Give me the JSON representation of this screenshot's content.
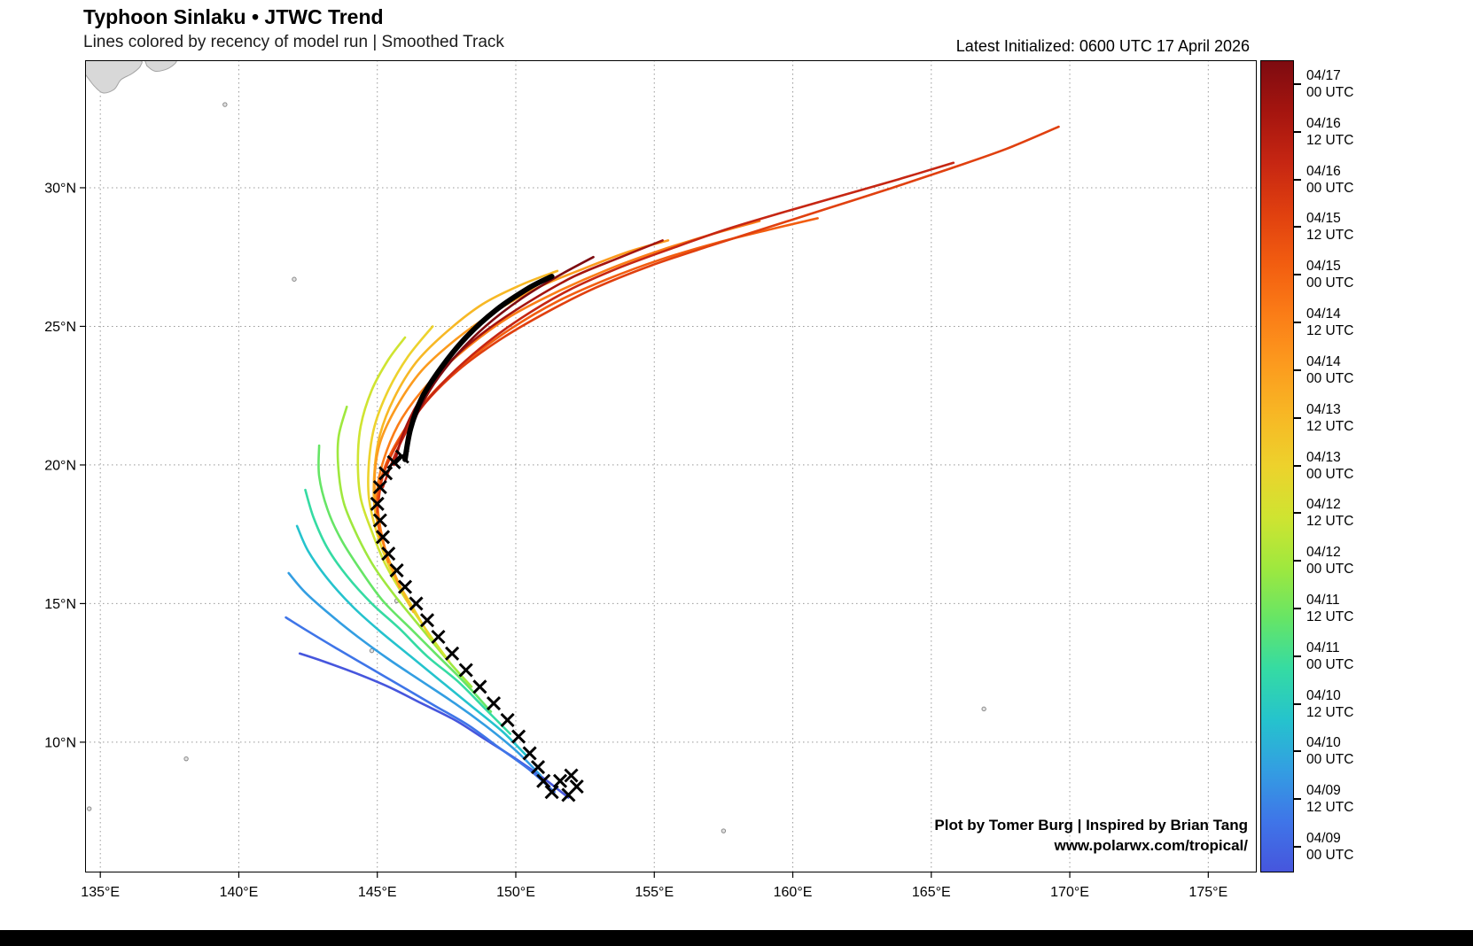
{
  "header": {
    "title": "Typhoon Sinlaku • JTWC Trend",
    "subtitle": "Lines colored by recency of model run | Smoothed Track",
    "latest_initialized": "Latest Initialized: 0600 UTC 17 April 2026"
  },
  "attribution": {
    "line1": "Plot by Tomer Burg | Inspired by Brian Tang",
    "line2": "www.polarwx.com/tropical/"
  },
  "chart_data": {
    "type": "line",
    "title": "Typhoon Sinlaku • JTWC Trend",
    "subtitle": "Lines colored by recency of model run | Smoothed Track",
    "grid": "dotted",
    "legend_position": "right-colorbar",
    "projection": {
      "lon_min": 134.45,
      "lon_max": 176.75,
      "lat_min": 5.3,
      "lat_max": 34.6
    },
    "x_ticks": {
      "values": [
        135,
        140,
        145,
        150,
        155,
        160,
        165,
        170,
        175
      ],
      "labels": [
        "135°E",
        "140°E",
        "145°E",
        "150°E",
        "155°E",
        "160°E",
        "165°E",
        "170°E",
        "175°E"
      ]
    },
    "y_ticks": {
      "values": [
        10,
        15,
        20,
        25,
        30
      ],
      "labels": [
        "10°N",
        "15°N",
        "20°N",
        "25°N",
        "30°N"
      ]
    },
    "colorbar": [
      {
        "date": "04/17",
        "time": "00 UTC",
        "color": "#7e0b10"
      },
      {
        "date": "04/16",
        "time": "12 UTC",
        "color": "#a5150f"
      },
      {
        "date": "04/16",
        "time": "00 UTC",
        "color": "#c62612"
      },
      {
        "date": "04/15",
        "time": "12 UTC",
        "color": "#e0400f"
      },
      {
        "date": "04/15",
        "time": "00 UTC",
        "color": "#f25d10"
      },
      {
        "date": "04/14",
        "time": "12 UTC",
        "color": "#fb7d17"
      },
      {
        "date": "04/14",
        "time": "00 UTC",
        "color": "#fc9b1e"
      },
      {
        "date": "04/13",
        "time": "12 UTC",
        "color": "#f7b825"
      },
      {
        "date": "04/13",
        "time": "00 UTC",
        "color": "#edd22c"
      },
      {
        "date": "04/12",
        "time": "12 UTC",
        "color": "#cfe431"
      },
      {
        "date": "04/12",
        "time": "00 UTC",
        "color": "#9fe83e"
      },
      {
        "date": "04/11",
        "time": "12 UTC",
        "color": "#66e566"
      },
      {
        "date": "04/11",
        "time": "00 UTC",
        "color": "#35dba3"
      },
      {
        "date": "04/10",
        "time": "12 UTC",
        "color": "#25c3cd"
      },
      {
        "date": "04/10",
        "time": "00 UTC",
        "color": "#339ee2"
      },
      {
        "date": "04/09",
        "time": "12 UTC",
        "color": "#3f75e8"
      },
      {
        "date": "04/09",
        "time": "00 UTC",
        "color": "#4656dd"
      }
    ],
    "runs": [
      {
        "label": "04/09 00 UTC",
        "color": "#4656dd",
        "points": [
          [
            151.9,
            8.0
          ],
          [
            151.0,
            8.7
          ],
          [
            150.0,
            9.4
          ],
          [
            148.9,
            10.1
          ],
          [
            147.8,
            10.8
          ],
          [
            146.6,
            11.4
          ],
          [
            145.4,
            12.0
          ],
          [
            144.2,
            12.5
          ],
          [
            143.1,
            12.9
          ],
          [
            142.2,
            13.2
          ]
        ]
      },
      {
        "label": "04/09 12 UTC",
        "color": "#3f75e8",
        "points": [
          [
            151.4,
            8.2
          ],
          [
            150.5,
            9.0
          ],
          [
            149.4,
            9.8
          ],
          [
            148.3,
            10.6
          ],
          [
            147.1,
            11.3
          ],
          [
            145.9,
            12.0
          ],
          [
            144.7,
            12.7
          ],
          [
            143.5,
            13.4
          ],
          [
            142.5,
            14.0
          ],
          [
            141.7,
            14.5
          ]
        ]
      },
      {
        "label": "04/10 00 UTC",
        "color": "#339ee2",
        "points": [
          [
            150.9,
            8.8
          ],
          [
            150.0,
            9.7
          ],
          [
            148.9,
            10.6
          ],
          [
            147.8,
            11.4
          ],
          [
            146.6,
            12.2
          ],
          [
            145.4,
            13.0
          ],
          [
            144.3,
            13.8
          ],
          [
            143.3,
            14.6
          ],
          [
            142.4,
            15.4
          ],
          [
            141.8,
            16.1
          ]
        ]
      },
      {
        "label": "04/10 12 UTC",
        "color": "#25c3cd",
        "points": [
          [
            150.4,
            9.5
          ],
          [
            149.5,
            10.4
          ],
          [
            148.4,
            11.3
          ],
          [
            147.3,
            12.2
          ],
          [
            146.2,
            13.1
          ],
          [
            145.1,
            14.0
          ],
          [
            144.1,
            14.9
          ],
          [
            143.2,
            15.9
          ],
          [
            142.5,
            16.9
          ],
          [
            142.1,
            17.8
          ]
        ]
      },
      {
        "label": "04/11 00 UTC",
        "color": "#35dba3",
        "points": [
          [
            149.8,
            10.3
          ],
          [
            148.9,
            11.2
          ],
          [
            147.9,
            12.2
          ],
          [
            146.8,
            13.1
          ],
          [
            145.8,
            14.1
          ],
          [
            144.8,
            15.0
          ],
          [
            143.9,
            16.0
          ],
          [
            143.2,
            17.0
          ],
          [
            142.7,
            18.1
          ],
          [
            142.4,
            19.1
          ]
        ]
      },
      {
        "label": "04/11 12 UTC",
        "color": "#66e566",
        "points": [
          [
            149.1,
            11.1
          ],
          [
            148.2,
            12.1
          ],
          [
            147.2,
            13.1
          ],
          [
            146.2,
            14.1
          ],
          [
            145.2,
            15.1
          ],
          [
            144.4,
            16.2
          ],
          [
            143.7,
            17.3
          ],
          [
            143.2,
            18.4
          ],
          [
            142.9,
            19.6
          ],
          [
            142.9,
            20.7
          ]
        ]
      },
      {
        "label": "04/12 00 UTC",
        "color": "#9fe83e",
        "points": [
          [
            148.4,
            12.0
          ],
          [
            147.5,
            13.0
          ],
          [
            146.6,
            14.1
          ],
          [
            145.7,
            15.2
          ],
          [
            144.9,
            16.3
          ],
          [
            144.3,
            17.4
          ],
          [
            143.8,
            18.6
          ],
          [
            143.6,
            19.8
          ],
          [
            143.6,
            21.0
          ],
          [
            143.9,
            22.1
          ]
        ]
      },
      {
        "label": "04/12 12 UTC",
        "color": "#cfe431",
        "points": [
          [
            147.6,
            12.9
          ],
          [
            146.8,
            14.0
          ],
          [
            146.0,
            15.2
          ],
          [
            145.3,
            16.4
          ],
          [
            144.8,
            17.6
          ],
          [
            144.4,
            18.8
          ],
          [
            144.3,
            20.1
          ],
          [
            144.4,
            21.4
          ],
          [
            144.8,
            22.7
          ],
          [
            145.4,
            23.8
          ],
          [
            146.0,
            24.6
          ]
        ]
      },
      {
        "label": "04/13 00 UTC",
        "color": "#edd22c",
        "points": [
          [
            146.9,
            13.8
          ],
          [
            146.2,
            15.0
          ],
          [
            145.5,
            16.2
          ],
          [
            145.0,
            17.5
          ],
          [
            144.7,
            18.8
          ],
          [
            144.7,
            20.1
          ],
          [
            144.9,
            21.4
          ],
          [
            145.4,
            22.7
          ],
          [
            146.1,
            23.9
          ],
          [
            147.0,
            25.0
          ]
        ]
      },
      {
        "label": "04/13 12 UTC",
        "color": "#f7b825",
        "points": [
          [
            146.3,
            14.7
          ],
          [
            145.7,
            15.9
          ],
          [
            145.2,
            17.2
          ],
          [
            144.9,
            18.5
          ],
          [
            144.9,
            19.8
          ],
          [
            145.1,
            21.1
          ],
          [
            145.6,
            22.4
          ],
          [
            146.4,
            23.7
          ],
          [
            147.5,
            24.8
          ],
          [
            148.8,
            25.8
          ],
          [
            150.2,
            26.5
          ],
          [
            151.5,
            27.0
          ]
        ]
      },
      {
        "label": "04/14 00 UTC",
        "color": "#fc9b1e",
        "points": [
          [
            145.8,
            15.6
          ],
          [
            145.3,
            16.9
          ],
          [
            145.0,
            18.2
          ],
          [
            144.9,
            19.5
          ],
          [
            145.1,
            20.8
          ],
          [
            145.7,
            22.1
          ],
          [
            146.6,
            23.4
          ],
          [
            147.8,
            24.5
          ],
          [
            149.2,
            25.5
          ],
          [
            150.8,
            26.4
          ],
          [
            152.5,
            27.1
          ],
          [
            154.1,
            27.7
          ],
          [
            155.5,
            28.1
          ]
        ]
      },
      {
        "label": "04/14 12 UTC",
        "color": "#fb7d17",
        "points": [
          [
            145.4,
            16.5
          ],
          [
            145.1,
            17.8
          ],
          [
            145.0,
            19.1
          ],
          [
            145.3,
            20.4
          ],
          [
            145.9,
            21.7
          ],
          [
            146.9,
            23.0
          ],
          [
            148.2,
            24.2
          ],
          [
            149.7,
            25.3
          ],
          [
            151.4,
            26.2
          ],
          [
            153.2,
            27.0
          ],
          [
            155.1,
            27.7
          ],
          [
            157.0,
            28.3
          ],
          [
            158.8,
            28.8
          ]
        ]
      },
      {
        "label": "04/15 00 UTC",
        "color": "#f25d10",
        "points": [
          [
            145.1,
            17.4
          ],
          [
            145.0,
            18.7
          ],
          [
            145.3,
            20.0
          ],
          [
            146.0,
            21.3
          ],
          [
            147.0,
            22.6
          ],
          [
            148.3,
            23.8
          ],
          [
            149.8,
            24.9
          ],
          [
            151.5,
            25.9
          ],
          [
            153.3,
            26.7
          ],
          [
            155.2,
            27.4
          ],
          [
            157.2,
            28.0
          ],
          [
            159.2,
            28.5
          ],
          [
            160.9,
            28.9
          ]
        ]
      },
      {
        "label": "04/15 12 UTC",
        "color": "#e0400f",
        "points": [
          [
            145.0,
            18.3
          ],
          [
            145.2,
            19.6
          ],
          [
            145.8,
            20.9
          ],
          [
            146.7,
            22.2
          ],
          [
            147.9,
            23.4
          ],
          [
            149.4,
            24.5
          ],
          [
            151.1,
            25.5
          ],
          [
            152.9,
            26.4
          ],
          [
            154.9,
            27.2
          ],
          [
            157.0,
            27.9
          ],
          [
            159.2,
            28.6
          ],
          [
            161.4,
            29.3
          ],
          [
            163.6,
            30.0
          ],
          [
            165.7,
            30.7
          ],
          [
            167.7,
            31.4
          ],
          [
            169.6,
            32.2
          ]
        ]
      },
      {
        "label": "04/16 00 UTC",
        "color": "#c62612",
        "points": [
          [
            145.2,
            19.2
          ],
          [
            145.7,
            20.5
          ],
          [
            146.4,
            21.8
          ],
          [
            147.4,
            23.0
          ],
          [
            148.7,
            24.2
          ],
          [
            150.2,
            25.3
          ],
          [
            151.9,
            26.3
          ],
          [
            153.7,
            27.1
          ],
          [
            155.6,
            27.8
          ],
          [
            157.6,
            28.5
          ],
          [
            159.6,
            29.1
          ],
          [
            161.7,
            29.7
          ],
          [
            163.8,
            30.3
          ],
          [
            165.8,
            30.9
          ]
        ]
      },
      {
        "label": "04/16 12 UTC",
        "color": "#a5150f",
        "points": [
          [
            145.6,
            20.0
          ],
          [
            146.0,
            21.3
          ],
          [
            146.7,
            22.6
          ],
          [
            147.7,
            23.8
          ],
          [
            149.0,
            24.9
          ],
          [
            150.5,
            25.9
          ],
          [
            152.1,
            26.8
          ],
          [
            153.8,
            27.5
          ],
          [
            155.3,
            28.1
          ]
        ]
      },
      {
        "label": "04/17 00 UTC",
        "color": "#7e0b10",
        "points": [
          [
            146.0,
            20.3
          ],
          [
            146.3,
            21.5
          ],
          [
            146.9,
            22.7
          ],
          [
            147.8,
            23.9
          ],
          [
            148.9,
            25.0
          ],
          [
            150.2,
            26.0
          ],
          [
            151.5,
            26.8
          ],
          [
            152.8,
            27.5
          ]
        ]
      }
    ],
    "latest_track": {
      "color": "#000000",
      "width": 6,
      "points": [
        [
          146.0,
          20.2
        ],
        [
          146.2,
          21.3
        ],
        [
          146.6,
          22.4
        ],
        [
          147.3,
          23.5
        ],
        [
          148.2,
          24.6
        ],
        [
          149.3,
          25.6
        ],
        [
          150.5,
          26.4
        ],
        [
          151.3,
          26.8
        ]
      ]
    },
    "observed": {
      "marker": "x",
      "color": "#000000",
      "points": [
        [
          152.2,
          8.4
        ],
        [
          151.9,
          8.1
        ],
        [
          151.6,
          8.6
        ],
        [
          152.0,
          8.8
        ],
        [
          151.3,
          8.2
        ],
        [
          151.0,
          8.6
        ],
        [
          150.8,
          9.1
        ],
        [
          150.5,
          9.6
        ],
        [
          150.1,
          10.2
        ],
        [
          149.7,
          10.8
        ],
        [
          149.2,
          11.4
        ],
        [
          148.7,
          12.0
        ],
        [
          148.2,
          12.6
        ],
        [
          147.7,
          13.2
        ],
        [
          147.2,
          13.8
        ],
        [
          146.8,
          14.4
        ],
        [
          146.4,
          15.0
        ],
        [
          146.0,
          15.6
        ],
        [
          145.7,
          16.2
        ],
        [
          145.4,
          16.8
        ],
        [
          145.2,
          17.4
        ],
        [
          145.1,
          18.0
        ],
        [
          145.0,
          18.6
        ],
        [
          145.1,
          19.2
        ],
        [
          145.3,
          19.7
        ],
        [
          145.6,
          20.1
        ],
        [
          145.9,
          20.3
        ]
      ]
    },
    "land": [
      {
        "name": "honshu-coast",
        "points": [
          [
            134.45,
            34.62
          ],
          [
            136.3,
            34.62
          ],
          [
            136.45,
            34.4
          ],
          [
            136.15,
            34.12
          ],
          [
            135.75,
            33.9
          ],
          [
            135.5,
            33.55
          ],
          [
            135.1,
            33.42
          ],
          [
            134.8,
            33.65
          ],
          [
            134.6,
            33.9
          ],
          [
            134.45,
            34.1
          ]
        ]
      },
      {
        "name": "honshu-coast-2",
        "points": [
          [
            136.6,
            34.62
          ],
          [
            137.7,
            34.62
          ],
          [
            137.5,
            34.33
          ],
          [
            137.0,
            34.2
          ],
          [
            136.68,
            34.4
          ]
        ]
      }
    ],
    "islands": [
      [
        139.5,
        33.0
      ],
      [
        142.0,
        26.7
      ],
      [
        134.6,
        7.6
      ],
      [
        138.1,
        9.4
      ],
      [
        157.5,
        6.8
      ],
      [
        166.9,
        11.2
      ],
      [
        144.8,
        13.3
      ],
      [
        145.7,
        15.1
      ]
    ]
  }
}
